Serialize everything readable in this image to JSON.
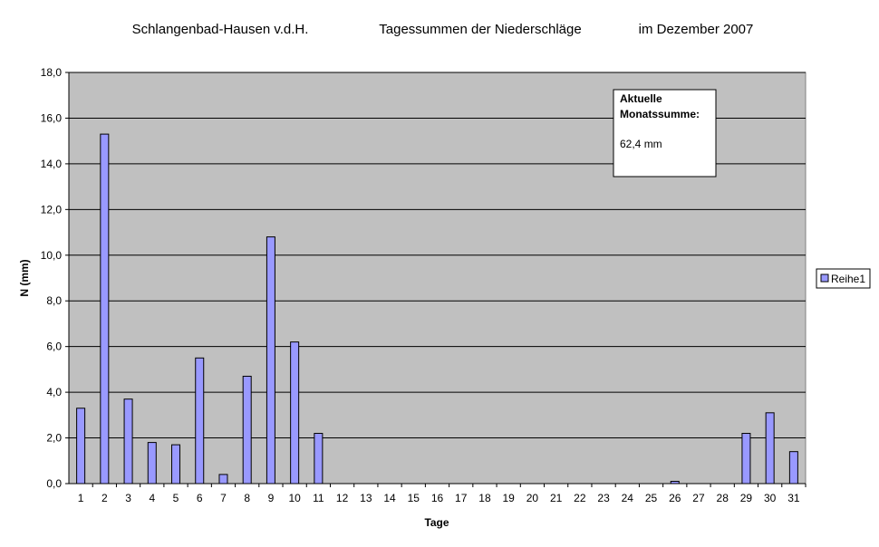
{
  "chart_data": {
    "type": "bar",
    "title_parts": [
      "Schlangenbad-Hausen v.d.H.",
      "Tagessummen der Niederschläge",
      "im Dezember 2007"
    ],
    "xlabel": "Tage",
    "ylabel": "N (mm)",
    "ylim": [
      0,
      18
    ],
    "ytick_step": 2,
    "ytick_labels": [
      "0,0",
      "2,0",
      "4,0",
      "6,0",
      "8,0",
      "10,0",
      "12,0",
      "14,0",
      "16,0",
      "18,0"
    ],
    "grid": true,
    "legend_position": "right",
    "categories": [
      "1",
      "2",
      "3",
      "4",
      "5",
      "6",
      "7",
      "8",
      "9",
      "10",
      "11",
      "12",
      "13",
      "14",
      "15",
      "16",
      "17",
      "18",
      "19",
      "20",
      "21",
      "22",
      "23",
      "24",
      "25",
      "26",
      "27",
      "28",
      "29",
      "30",
      "31"
    ],
    "series": [
      {
        "name": "Reihe1",
        "values": [
          3.3,
          15.3,
          3.7,
          1.8,
          1.7,
          5.5,
          0.4,
          4.7,
          10.8,
          6.2,
          2.2,
          0,
          0,
          0,
          0,
          0,
          0,
          0,
          0,
          0,
          0,
          0,
          0,
          0,
          0,
          0.1,
          0,
          0,
          2.2,
          3.1,
          1.4
        ],
        "color": "#9999ff"
      }
    ],
    "annotation": {
      "line1": "Aktuelle",
      "line2": "Monatssumme:",
      "value_text": "62,4  mm"
    },
    "colors": {
      "plot_background": "#c0c0c0",
      "bar_fill": "#9999ff",
      "bar_stroke": "#000000",
      "gridline": "#000000"
    }
  }
}
